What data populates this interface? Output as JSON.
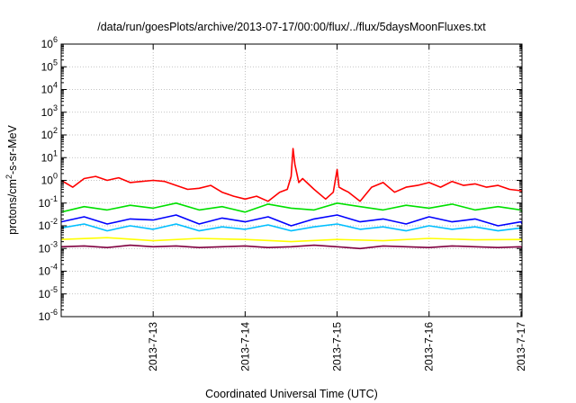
{
  "chart_data": {
    "type": "line",
    "title": "/data/run/goesPlots/archive/2013-07-17/00:00/flux/../flux/5daysMoonFluxes.txt",
    "xlabel": "Coordinated Universal Time (UTC)",
    "ylabel": "protons/cm2-s-sr-MeV",
    "ylabel_parts": {
      "pre": "protons/cm",
      "sup": "2",
      "post": "-s-sr-MeV"
    },
    "y_scale": "log",
    "ylim_exponents": [
      -6,
      6
    ],
    "y_ticks": [
      {
        "base": "10",
        "exp": "-6"
      },
      {
        "base": "10",
        "exp": "-5"
      },
      {
        "base": "10",
        "exp": "-4"
      },
      {
        "base": "10",
        "exp": "-3"
      },
      {
        "base": "10",
        "exp": "-2"
      },
      {
        "base": "10",
        "exp": "-1"
      },
      {
        "base": "10",
        "exp": "0"
      },
      {
        "base": "10",
        "exp": "1"
      },
      {
        "base": "10",
        "exp": "2"
      },
      {
        "base": "10",
        "exp": "3"
      },
      {
        "base": "10",
        "exp": "4"
      },
      {
        "base": "10",
        "exp": "5"
      },
      {
        "base": "10",
        "exp": "6"
      }
    ],
    "x_ticks": [
      "2013-7-13",
      "2013-7-14",
      "2013-7-15",
      "2013-7-16",
      "2013-7-17"
    ],
    "xlim": [
      "2013-07-12 00:00",
      "2013-07-17 00:15"
    ],
    "grid": true,
    "legend": "none",
    "series": [
      {
        "color": "#ff0000",
        "x": [
          "2013-07-12 00:00",
          "2013-07-12 03:00",
          "2013-07-12 06:00",
          "2013-07-12 09:00",
          "2013-07-12 12:00",
          "2013-07-12 15:00",
          "2013-07-12 18:00",
          "2013-07-12 21:00",
          "2013-07-13 00:00",
          "2013-07-13 03:00",
          "2013-07-13 06:00",
          "2013-07-13 09:00",
          "2013-07-13 12:00",
          "2013-07-13 15:00",
          "2013-07-13 18:00",
          "2013-07-13 21:00",
          "2013-07-14 00:00",
          "2013-07-14 03:00",
          "2013-07-14 06:00",
          "2013-07-14 09:00",
          "2013-07-14 11:00",
          "2013-07-14 12:00",
          "2013-07-14 12:30",
          "2013-07-14 13:00",
          "2013-07-14 14:00",
          "2013-07-14 15:00",
          "2013-07-14 18:00",
          "2013-07-14 21:00",
          "2013-07-14 23:00",
          "2013-07-15 00:00",
          "2013-07-15 00:30",
          "2013-07-15 01:30",
          "2013-07-15 03:00",
          "2013-07-15 06:00",
          "2013-07-15 09:00",
          "2013-07-15 12:00",
          "2013-07-15 15:00",
          "2013-07-15 18:00",
          "2013-07-15 21:00",
          "2013-07-16 00:00",
          "2013-07-16 03:00",
          "2013-07-16 06:00",
          "2013-07-16 09:00",
          "2013-07-16 12:00",
          "2013-07-16 15:00",
          "2013-07-16 18:00",
          "2013-07-16 21:00",
          "2013-07-17 00:00",
          "2013-07-17 00:15"
        ],
        "y": [
          1.0,
          0.5,
          1.2,
          1.5,
          1.0,
          1.3,
          0.8,
          0.9,
          1.0,
          0.9,
          0.6,
          0.4,
          0.45,
          0.6,
          0.3,
          0.2,
          0.15,
          0.2,
          0.12,
          0.3,
          0.4,
          1.5,
          25,
          5,
          0.8,
          1.2,
          0.4,
          0.15,
          0.3,
          3.0,
          0.5,
          0.4,
          0.3,
          0.12,
          0.5,
          0.8,
          0.3,
          0.5,
          0.6,
          0.8,
          0.5,
          0.9,
          0.6,
          0.7,
          0.5,
          0.6,
          0.4,
          0.35,
          0.3
        ]
      },
      {
        "color": "#00e000",
        "x": [
          "2013-07-12 00:00",
          "2013-07-12 06:00",
          "2013-07-12 12:00",
          "2013-07-12 18:00",
          "2013-07-13 00:00",
          "2013-07-13 06:00",
          "2013-07-13 12:00",
          "2013-07-13 18:00",
          "2013-07-14 00:00",
          "2013-07-14 06:00",
          "2013-07-14 12:00",
          "2013-07-14 18:00",
          "2013-07-15 00:00",
          "2013-07-15 06:00",
          "2013-07-15 12:00",
          "2013-07-15 18:00",
          "2013-07-16 00:00",
          "2013-07-16 06:00",
          "2013-07-16 12:00",
          "2013-07-16 18:00",
          "2013-07-17 00:00",
          "2013-07-17 00:15"
        ],
        "y": [
          0.04,
          0.07,
          0.05,
          0.08,
          0.06,
          0.1,
          0.05,
          0.07,
          0.04,
          0.09,
          0.06,
          0.05,
          0.1,
          0.07,
          0.05,
          0.08,
          0.06,
          0.09,
          0.05,
          0.07,
          0.05,
          0.04
        ]
      },
      {
        "color": "#0000ff",
        "x": [
          "2013-07-12 00:00",
          "2013-07-12 06:00",
          "2013-07-12 12:00",
          "2013-07-12 18:00",
          "2013-07-13 00:00",
          "2013-07-13 06:00",
          "2013-07-13 12:00",
          "2013-07-13 18:00",
          "2013-07-14 00:00",
          "2013-07-14 06:00",
          "2013-07-14 12:00",
          "2013-07-14 18:00",
          "2013-07-15 00:00",
          "2013-07-15 06:00",
          "2013-07-15 12:00",
          "2013-07-15 18:00",
          "2013-07-16 00:00",
          "2013-07-16 06:00",
          "2013-07-16 12:00",
          "2013-07-16 18:00",
          "2013-07-17 00:00",
          "2013-07-17 00:15"
        ],
        "y": [
          0.015,
          0.025,
          0.012,
          0.02,
          0.018,
          0.03,
          0.012,
          0.022,
          0.015,
          0.025,
          0.01,
          0.02,
          0.03,
          0.015,
          0.02,
          0.012,
          0.025,
          0.015,
          0.02,
          0.01,
          0.015,
          0.012
        ]
      },
      {
        "color": "#00bfff",
        "x": [
          "2013-07-12 00:00",
          "2013-07-12 06:00",
          "2013-07-12 12:00",
          "2013-07-12 18:00",
          "2013-07-13 00:00",
          "2013-07-13 06:00",
          "2013-07-13 12:00",
          "2013-07-13 18:00",
          "2013-07-14 00:00",
          "2013-07-14 06:00",
          "2013-07-14 12:00",
          "2013-07-14 18:00",
          "2013-07-15 00:00",
          "2013-07-15 06:00",
          "2013-07-15 12:00",
          "2013-07-15 18:00",
          "2013-07-16 00:00",
          "2013-07-16 06:00",
          "2013-07-16 12:00",
          "2013-07-16 18:00",
          "2013-07-17 00:00",
          "2013-07-17 00:15"
        ],
        "y": [
          0.008,
          0.012,
          0.006,
          0.01,
          0.007,
          0.012,
          0.006,
          0.009,
          0.007,
          0.011,
          0.006,
          0.009,
          0.012,
          0.007,
          0.009,
          0.006,
          0.01,
          0.007,
          0.009,
          0.006,
          0.008,
          0.007
        ]
      },
      {
        "color": "#ffff00",
        "x": [
          "2013-07-12 00:00",
          "2013-07-12 12:00",
          "2013-07-13 00:00",
          "2013-07-13 12:00",
          "2013-07-14 00:00",
          "2013-07-14 12:00",
          "2013-07-15 00:00",
          "2013-07-15 12:00",
          "2013-07-16 00:00",
          "2013-07-16 12:00",
          "2013-07-17 00:00",
          "2013-07-17 00:15"
        ],
        "y": [
          0.0025,
          0.003,
          0.0022,
          0.0028,
          0.0025,
          0.002,
          0.0025,
          0.0022,
          0.0028,
          0.0024,
          0.0025,
          0.0022
        ]
      },
      {
        "color": "#800040",
        "x": [
          "2013-07-12 00:00",
          "2013-07-12 06:00",
          "2013-07-12 12:00",
          "2013-07-12 18:00",
          "2013-07-13 00:00",
          "2013-07-13 06:00",
          "2013-07-13 12:00",
          "2013-07-13 18:00",
          "2013-07-14 00:00",
          "2013-07-14 06:00",
          "2013-07-14 12:00",
          "2013-07-14 18:00",
          "2013-07-15 00:00",
          "2013-07-15 06:00",
          "2013-07-15 12:00",
          "2013-07-15 18:00",
          "2013-07-16 00:00",
          "2013-07-16 06:00",
          "2013-07-16 12:00",
          "2013-07-16 18:00",
          "2013-07-17 00:00",
          "2013-07-17 00:15"
        ],
        "y": [
          0.0012,
          0.0013,
          0.0011,
          0.0014,
          0.0012,
          0.0013,
          0.0011,
          0.0012,
          0.0013,
          0.0011,
          0.0012,
          0.0014,
          0.0012,
          0.001,
          0.0013,
          0.0012,
          0.0011,
          0.0013,
          0.0012,
          0.0011,
          0.0012,
          0.0011
        ]
      }
    ]
  }
}
